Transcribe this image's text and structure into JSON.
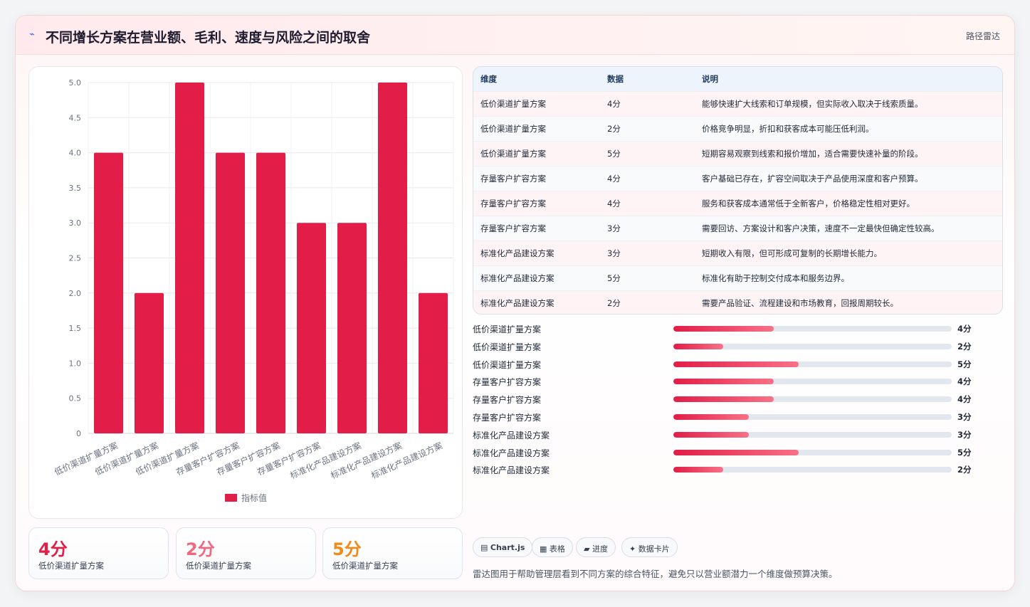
{
  "header": {
    "icon": "lightning-icon",
    "title": "不同增长方案在营业额、毛利、速度与风险之间的取舍",
    "tag": "路径雷达"
  },
  "colors": {
    "accent": "#e11d48",
    "bar": "#e11d48",
    "stat1": "#e11d48",
    "stat2": "#f0687f",
    "stat3": "#f08a1c"
  },
  "chart_data": {
    "type": "bar",
    "categories": [
      "低价渠道扩量方案",
      "低价渠道扩量方案",
      "低价渠道扩量方案",
      "存量客户扩容方案",
      "存量客户扩容方案",
      "存量客户扩容方案",
      "标准化产品建设方案",
      "标准化产品建设方案",
      "标准化产品建设方案"
    ],
    "series": [
      {
        "name": "指标值",
        "values": [
          4,
          2,
          5,
          4,
          4,
          3,
          3,
          5,
          2
        ]
      }
    ],
    "ylim": [
      0,
      5
    ],
    "yticks": [
      "0",
      "0.5",
      "1.0",
      "1.5",
      "2.0",
      "2.5",
      "3.0",
      "3.5",
      "4.0",
      "4.5",
      "5.0"
    ],
    "grid": true,
    "legend_position": "bottom"
  },
  "table": {
    "headers": [
      "维度",
      "数据",
      "说明"
    ],
    "rows": [
      [
        "低价渠道扩量方案",
        "4分",
        "能够快速扩大线索和订单规模，但实际收入取决于线索质量。"
      ],
      [
        "低价渠道扩量方案",
        "2分",
        "价格竞争明显，折扣和获客成本可能压低利润。"
      ],
      [
        "低价渠道扩量方案",
        "5分",
        "短期容易观察到线索和报价增加，适合需要快速补量的阶段。"
      ],
      [
        "存量客户扩容方案",
        "4分",
        "客户基础已存在，扩容空间取决于产品使用深度和客户预算。"
      ],
      [
        "存量客户扩容方案",
        "4分",
        "服务和获客成本通常低于全新客户，价格稳定性相对更好。"
      ],
      [
        "存量客户扩容方案",
        "3分",
        "需要回访、方案设计和客户决策，速度不一定最快但确定性较高。"
      ],
      [
        "标准化产品建设方案",
        "3分",
        "短期收入有限，但可形成可复制的长期增长能力。"
      ],
      [
        "标准化产品建设方案",
        "5分",
        "标准化有助于控制交付成本和服务边界。"
      ],
      [
        "标准化产品建设方案",
        "2分",
        "需要产品验证、流程建设和市场教育，回报周期较长。"
      ]
    ]
  },
  "progress": {
    "max": 5,
    "items": [
      {
        "label": "低价渠道扩量方案",
        "value": 4,
        "text": "4分"
      },
      {
        "label": "低价渠道扩量方案",
        "value": 2,
        "text": "2分"
      },
      {
        "label": "低价渠道扩量方案",
        "value": 5,
        "text": "5分"
      },
      {
        "label": "存量客户扩容方案",
        "value": 4,
        "text": "4分"
      },
      {
        "label": "存量客户扩容方案",
        "value": 4,
        "text": "4分"
      },
      {
        "label": "存量客户扩容方案",
        "value": 3,
        "text": "3分"
      },
      {
        "label": "标准化产品建设方案",
        "value": 3,
        "text": "3分"
      },
      {
        "label": "标准化产品建设方案",
        "value": 5,
        "text": "5分"
      },
      {
        "label": "标准化产品建设方案",
        "value": 2,
        "text": "2分"
      }
    ]
  },
  "stats": [
    {
      "value": "4分",
      "label": "低价渠道扩量方案"
    },
    {
      "value": "2分",
      "label": "低价渠道扩量方案"
    },
    {
      "value": "5分",
      "label": "低价渠道扩量方案"
    }
  ],
  "chips": [
    {
      "icon": "chart-icon",
      "glyph": "▤",
      "label": "Chart.js"
    },
    {
      "icon": "table-icon",
      "glyph": "▦",
      "label": "表格"
    },
    {
      "icon": "progress-icon",
      "glyph": "▰",
      "label": "进度"
    },
    {
      "icon": "card-icon",
      "glyph": "✦",
      "label": "数据卡片"
    }
  ],
  "note": "雷达图用于帮助管理层看到不同方案的综合特征，避免只以营业额潜力一个维度做预算决策。"
}
